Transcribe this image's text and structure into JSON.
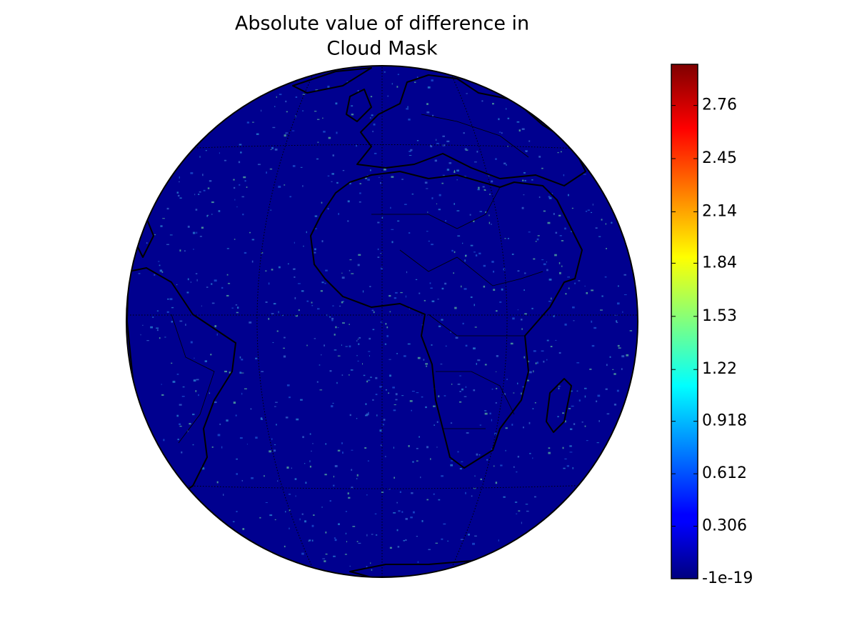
{
  "map": {
    "title_lines": [
      "Absolute value of difference in",
      "Cloud Mask"
    ],
    "colorbar": {
      "colormap": "jet",
      "lim": [
        -1e-19,
        3
      ],
      "ticks": [
        -1e-19,
        0.306,
        0.612,
        0.918,
        1.22,
        1.53,
        1.84,
        2.14,
        2.45,
        2.76
      ]
    }
  }
}
